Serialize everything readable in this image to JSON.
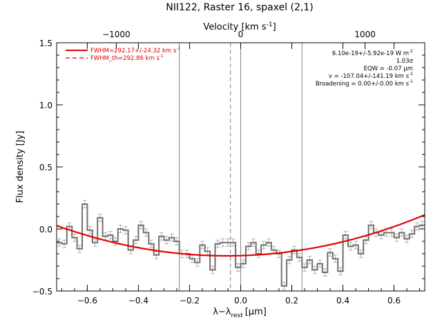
{
  "chart_data": {
    "type": "line",
    "title": "NII122, Raster 16, spaxel (2,1)",
    "xlabel": "λ−λ",
    "xlabel_sub": "rest",
    "xlabel_unit": "[μm]",
    "ylabel": "Flux density [Jy]",
    "top_axis_label": "Velocity [km s",
    "top_axis_label_sup": "-1",
    "top_axis_label_end": "]",
    "xlim": [
      -0.72,
      0.72
    ],
    "ylim": [
      -0.5,
      1.5
    ],
    "x_ticks": [
      {
        "v": -0.6,
        "t": "−0.6"
      },
      {
        "v": -0.4,
        "t": "−0.4"
      },
      {
        "v": -0.2,
        "t": "−0.2"
      },
      {
        "v": 0.0,
        "t": "0.0"
      },
      {
        "v": 0.2,
        "t": "0.2"
      },
      {
        "v": 0.4,
        "t": "0.4"
      },
      {
        "v": 0.6,
        "t": "0.6"
      }
    ],
    "y_ticks": [
      {
        "v": -0.5,
        "t": "−0.5"
      },
      {
        "v": 0.0,
        "t": "0.0"
      },
      {
        "v": 0.5,
        "t": "0.5"
      },
      {
        "v": 1.0,
        "t": "1.0"
      },
      {
        "v": 1.5,
        "t": "1.5"
      }
    ],
    "top_ticks": [
      {
        "v": -0.4866,
        "t": "−1000"
      },
      {
        "v": 0.0,
        "t": "0"
      },
      {
        "v": 0.4866,
        "t": "1000"
      }
    ],
    "vertical_lines": [
      {
        "x": -0.24,
        "style": "solid"
      },
      {
        "x": 0.0,
        "style": "solid"
      },
      {
        "x": 0.24,
        "style": "solid"
      },
      {
        "x": -0.04,
        "style": "dashed"
      }
    ],
    "spectrum": {
      "name": "data",
      "color": "#707070",
      "x": [
        -0.71,
        -0.69,
        -0.67,
        -0.65,
        -0.63,
        -0.61,
        -0.59,
        -0.57,
        -0.55,
        -0.53,
        -0.51,
        -0.49,
        -0.47,
        -0.45,
        -0.43,
        -0.41,
        -0.39,
        -0.37,
        -0.35,
        -0.33,
        -0.31,
        -0.29,
        -0.27,
        -0.25,
        -0.23,
        -0.21,
        -0.19,
        -0.17,
        -0.15,
        -0.13,
        -0.11,
        -0.09,
        -0.07,
        -0.05,
        -0.03,
        -0.01,
        0.01,
        0.03,
        0.05,
        0.07,
        0.09,
        0.11,
        0.13,
        0.15,
        0.17,
        0.19,
        0.21,
        0.23,
        0.25,
        0.27,
        0.29,
        0.31,
        0.33,
        0.35,
        0.37,
        0.39,
        0.41,
        0.43,
        0.45,
        0.47,
        0.49,
        0.51,
        0.53,
        0.55,
        0.57,
        0.59,
        0.61,
        0.63,
        0.65,
        0.67,
        0.69,
        0.71
      ],
      "y": [
        -0.11,
        -0.12,
        0.02,
        -0.07,
        -0.16,
        0.2,
        -0.01,
        -0.11,
        0.09,
        -0.06,
        -0.05,
        -0.1,
        0.0,
        -0.01,
        -0.17,
        -0.09,
        0.03,
        -0.03,
        -0.12,
        -0.21,
        -0.06,
        -0.09,
        -0.07,
        -0.1,
        -0.2,
        -0.2,
        -0.24,
        -0.27,
        -0.13,
        -0.18,
        -0.33,
        -0.12,
        -0.11,
        -0.11,
        -0.11,
        -0.31,
        -0.28,
        -0.14,
        -0.11,
        -0.2,
        -0.13,
        -0.11,
        -0.17,
        -0.2,
        -0.46,
        -0.25,
        -0.17,
        -0.23,
        -0.31,
        -0.25,
        -0.33,
        -0.28,
        -0.35,
        -0.19,
        -0.24,
        -0.34,
        -0.05,
        -0.14,
        -0.13,
        -0.2,
        -0.09,
        0.03,
        -0.03,
        -0.05,
        -0.03,
        -0.03,
        -0.07,
        -0.03,
        -0.08,
        -0.04,
        0.02,
        0.03
      ],
      "err": 0.03
    },
    "fit": {
      "name": "FWHM=292.17+/-24.32 km s",
      "name_sup": "-1",
      "color": "#e00000",
      "baseline": {
        "a": -0.215,
        "b": 0.06,
        "c": 0.55
      }
    },
    "legend": {
      "placement": "top-left",
      "entries": [
        {
          "label": "FWHM=292.17+/-24.32 km s",
          "sup": "-1",
          "style": "solid",
          "color": "#e00000"
        },
        {
          "label": "FWHM_th=292.86 km s",
          "sup": "-1",
          "style": "dashed",
          "color": "#e00000"
        }
      ]
    },
    "annotations": [
      {
        "text": "6.10e-19+/-5.92e-19 W m",
        "sup": "-2"
      },
      {
        "text": "1.03σ",
        "sup": ""
      },
      {
        "text": "EQW = -0.07 μm",
        "sup": ""
      },
      {
        "text": "v = -107.04+/-141.19 km s",
        "sup": "-1"
      },
      {
        "text": "Broadening = 0.00+/-0.00 km s",
        "sup": "-1"
      }
    ],
    "annotation_placement": "top-right",
    "grid": false
  }
}
